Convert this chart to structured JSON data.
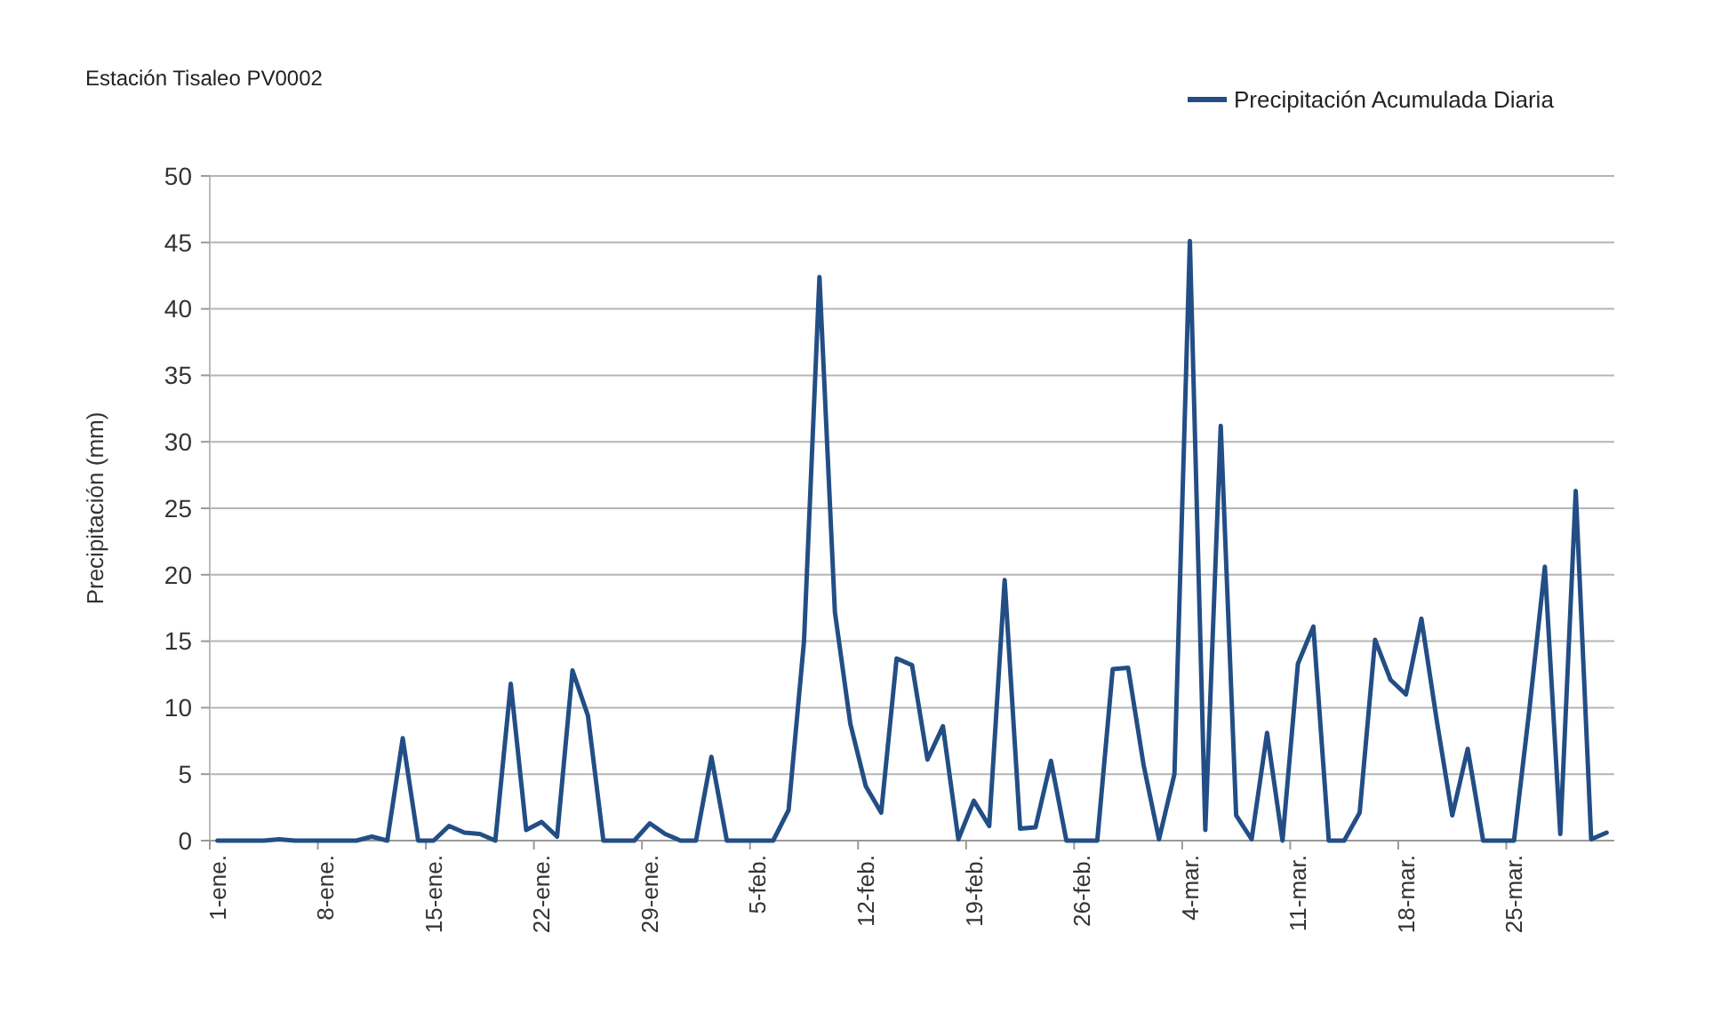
{
  "chart_data": {
    "type": "line",
    "title": "Estación  Tisaleo  PV0002",
    "ylabel": "Precipitación (mm)",
    "categories": [
      "1-ene.",
      null,
      null,
      null,
      null,
      null,
      null,
      "8-ene.",
      null,
      null,
      null,
      null,
      null,
      null,
      "15-ene.",
      null,
      null,
      null,
      null,
      null,
      null,
      "22-ene.",
      null,
      null,
      null,
      null,
      null,
      null,
      "29-ene.",
      null,
      null,
      null,
      null,
      null,
      null,
      "5-feb.",
      null,
      null,
      null,
      null,
      null,
      null,
      "12-feb.",
      null,
      null,
      null,
      null,
      null,
      null,
      "19-feb.",
      null,
      null,
      null,
      null,
      null,
      null,
      "26-feb.",
      null,
      null,
      null,
      null,
      null,
      null,
      "4-mar.",
      null,
      null,
      null,
      null,
      null,
      null,
      "11-mar.",
      null,
      null,
      null,
      null,
      null,
      null,
      "18-mar.",
      null,
      null,
      null,
      null,
      null,
      null,
      "25-mar.",
      null,
      null,
      null,
      null,
      null,
      null
    ],
    "series": [
      {
        "name": "Precipitación Acumulada Diaria",
        "color": "#234e85",
        "values": [
          0,
          0,
          0,
          0,
          0.1,
          0,
          0,
          0,
          0,
          0,
          0.3,
          0,
          7.7,
          0,
          0,
          1.1,
          0.6,
          0.5,
          0,
          11.8,
          0.8,
          1.4,
          0.3,
          12.8,
          9.4,
          0,
          0,
          0,
          1.3,
          0.5,
          0,
          0,
          6.3,
          0,
          0,
          0,
          0,
          2.3,
          15,
          42.4,
          17.2,
          8.8,
          4.1,
          2.1,
          13.7,
          13.2,
          6.1,
          8.6,
          0.1,
          3,
          1.1,
          19.6,
          0.9,
          1,
          6,
          0,
          0,
          0,
          12.9,
          13,
          5.7,
          0.1,
          5,
          45.1,
          0.8,
          31.2,
          1.9,
          0.1,
          8.1,
          0,
          13.3,
          16.1,
          0,
          0,
          2.1,
          15.1,
          12.1,
          11,
          16.7,
          9,
          1.9,
          6.9,
          0,
          0,
          0,
          9.9,
          20.6,
          0.5,
          26.3,
          0.1,
          0.6
        ]
      }
    ],
    "ylim": [
      0,
      50
    ],
    "yticks": [
      0,
      5,
      10,
      15,
      20,
      25,
      30,
      35,
      40,
      45,
      50
    ],
    "grid": "y",
    "legend": "top right",
    "marker": "none",
    "line_style": "solid"
  }
}
